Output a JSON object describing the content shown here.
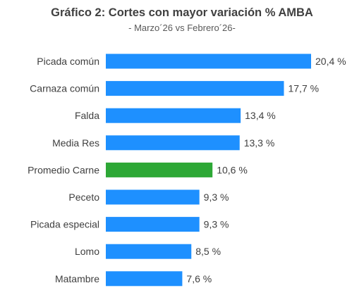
{
  "chart_data": {
    "type": "bar",
    "orientation": "horizontal",
    "title": "Gráfico 2: Cortes con mayor variación % AMBA",
    "subtitle": "- Marzo´26 vs Febrero´26-",
    "categories": [
      "Picada común",
      "Carnaza común",
      "Falda",
      "Media Res",
      "Promedio Carne",
      "Peceto",
      "Picada especial",
      "Lomo",
      "Matambre"
    ],
    "values": [
      20.4,
      17.7,
      13.4,
      13.3,
      10.6,
      9.3,
      9.3,
      8.5,
      7.6
    ],
    "value_labels": [
      "20,4 %",
      "17,7 %",
      "13,4 %",
      "13,3 %",
      "10,6 %",
      "9,3 %",
      "9,3 %",
      "8,5 %",
      "7,6 %"
    ],
    "highlight_category": "Promedio Carne",
    "colors": {
      "bar": "#1E90FF",
      "highlight": "#2DA836",
      "text": "#404040"
    },
    "xlim": [
      0,
      20.4
    ],
    "grid": false,
    "legend": "none"
  }
}
